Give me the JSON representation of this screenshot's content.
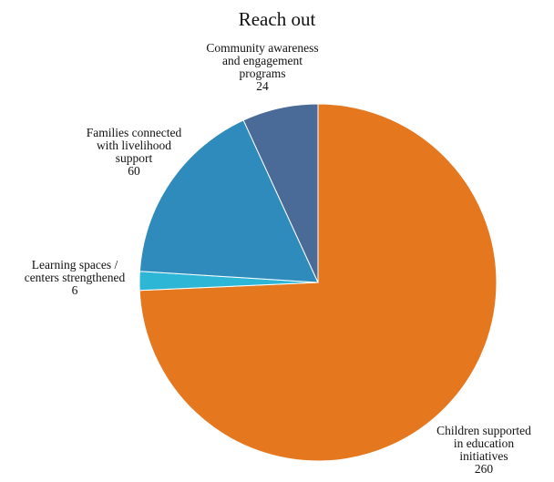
{
  "chart_data": {
    "type": "pie",
    "title": "Reach out",
    "slices": [
      {
        "label": "Children supported in education initiatives",
        "label_lines": [
          "Children supported",
          "in education",
          "initiatives"
        ],
        "value": 260,
        "display_value": "260",
        "color": "#E5771E"
      },
      {
        "label": "Learning spaces / centers strengthened",
        "label_lines": [
          "Learning spaces /",
          "centers strengthened"
        ],
        "value": 6,
        "display_value": "6",
        "color": "#2EB6D6"
      },
      {
        "label": "Families connected with livelihood support",
        "label_lines": [
          "Families connected",
          "with livelihood",
          "support"
        ],
        "value": 60,
        "display_value": "60",
        "color": "#2E8BBB"
      },
      {
        "label": "Community awareness and engagement programs",
        "label_lines": [
          "Community awareness",
          "and engagement",
          "programs"
        ],
        "value": 24,
        "display_value": "24",
        "color": "#4A6B98"
      }
    ],
    "legend": "none"
  }
}
